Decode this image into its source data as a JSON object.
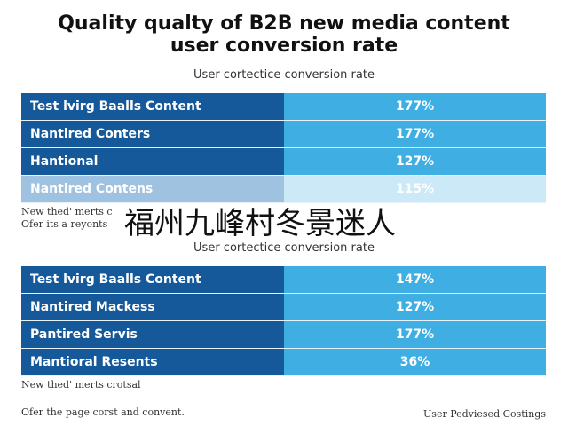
{
  "header": {
    "title": [
      "Quality qualty of B2B new media content",
      "user conversion rate"
    ]
  },
  "sections": [
    {
      "subtitle": "User cortectice conversion rate",
      "rows": [
        [
          "Test lvirg Baalls Content",
          "177%"
        ],
        [
          "Nantired Conters",
          "177%"
        ],
        [
          "Hantional",
          "127%"
        ],
        [
          "Nantired Contens",
          "115%"
        ]
      ],
      "notes": [
        "New thed' merts c",
        "Ofer its a reyonts"
      ]
    },
    {
      "subtitle": "User cortectice conversion rate",
      "rows": [
        [
          "Test lvirg Baalls Content",
          "147%"
        ],
        [
          "Nantired Mackess",
          "127%"
        ],
        [
          "Pantired Servis",
          "177%"
        ],
        [
          "Mantioral Resents",
          "36%"
        ]
      ],
      "notes": [
        "New thed' merts crotsal",
        "Ofer the page corst and convent."
      ]
    }
  ],
  "footer": {
    "right": "User Pedviesed Costings"
  },
  "overlay": "福州九峰村冬景迷人"
}
